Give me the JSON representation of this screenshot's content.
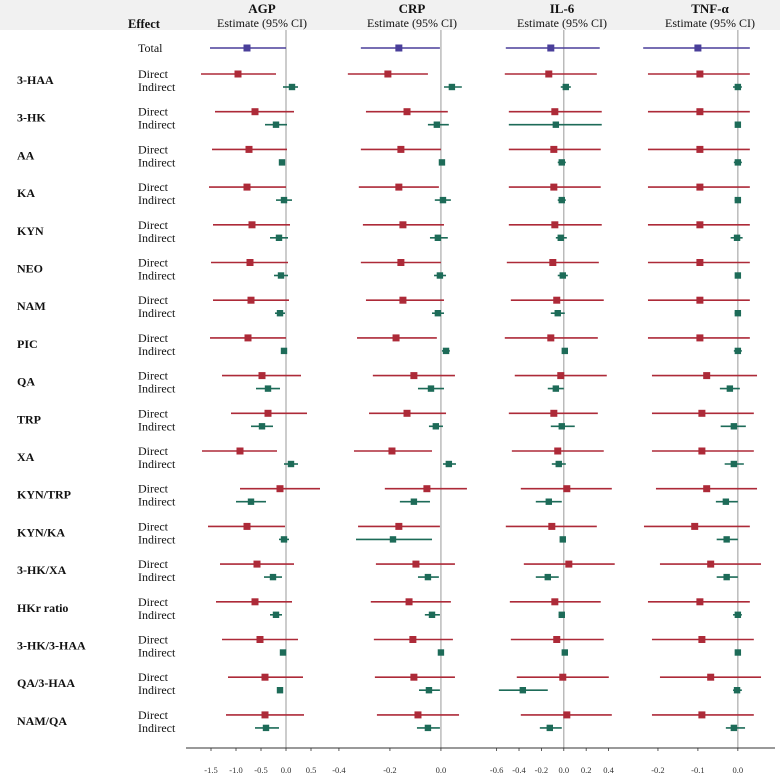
{
  "effect_header": "Effect",
  "chart_data": {
    "type": "forest",
    "colors": {
      "Total": "#4a3f9a",
      "Direct": "#ad2a38",
      "Indirect": "#1d6b58",
      "zero_line": "#aaaaaa"
    },
    "panels": [
      {
        "title": "AGP",
        "subtitle": "Estimate (95% CI)",
        "xlim": [
          -2.0,
          1.12
        ],
        "ticks": [
          -1.5,
          -1.0,
          -0.5,
          0.0,
          0.5
        ],
        "tick_labels": [
          "-1.5",
          "-1.0",
          "-0.5",
          "0.0",
          "0.5"
        ]
      },
      {
        "title": "CRP",
        "subtitle": "Estimate (95% CI)",
        "xlim": [
          -0.435,
          0.114
        ],
        "ticks": [
          -0.4,
          -0.2,
          0.0
        ],
        "tick_labels": [
          "-0.4",
          "-0.2",
          "0.0"
        ]
      },
      {
        "title": "IL-6",
        "subtitle": "Estimate (95% CI)",
        "xlim": [
          -0.82,
          0.52
        ],
        "ticks": [
          -0.6,
          -0.4,
          -0.2,
          0.0,
          0.2,
          0.4
        ],
        "tick_labels": [
          "-0.6",
          "-0.4",
          "-0.2",
          "0.0",
          "0.2",
          "0.4"
        ]
      },
      {
        "title": "TNF-α",
        "subtitle": "Estimate (95% CI)",
        "xlim": [
          -0.285,
          0.093
        ],
        "ticks": [
          -0.2,
          -0.1,
          0.0
        ],
        "tick_labels": [
          "-0.2",
          "-0.1",
          "0.0"
        ]
      }
    ],
    "total": {
      "effect": "Total",
      "values": [
        [
          -0.78,
          -1.52,
          0.0
        ],
        [
          -0.165,
          -0.314,
          -0.004
        ],
        [
          -0.116,
          -0.518,
          0.321
        ],
        [
          -0.1,
          -0.237,
          0.03
        ]
      ]
    },
    "rows": [
      {
        "exposure": "3-HAA",
        "direct": [
          [
            -0.96,
            -1.7,
            -0.2
          ],
          [
            -0.208,
            -0.365,
            -0.051
          ],
          [
            -0.134,
            -0.527,
            0.295
          ],
          [
            -0.095,
            -0.225,
            0.03
          ]
        ],
        "indirect": [
          [
            0.12,
            -0.06,
            0.24
          ],
          [
            0.043,
            0.012,
            0.082
          ],
          [
            0.018,
            -0.027,
            0.063
          ],
          [
            0,
            -0.012,
            0.01
          ]
        ]
      },
      {
        "exposure": "3-HK",
        "direct": [
          [
            -0.62,
            -1.42,
            0.16
          ],
          [
            -0.133,
            -0.294,
            0.027
          ],
          [
            -0.08,
            -0.491,
            0.339
          ],
          [
            -0.095,
            -0.225,
            0.03
          ]
        ],
        "indirect": [
          [
            -0.2,
            -0.42,
            0.02
          ],
          [
            -0.016,
            -0.051,
            0.031
          ],
          [
            -0.071,
            -0.491,
            0.339
          ],
          [
            0,
            -0.005,
            0.005
          ]
        ]
      },
      {
        "exposure": "AA",
        "direct": [
          [
            -0.74,
            -1.48,
            0.02
          ],
          [
            -0.157,
            -0.314,
            0.0
          ],
          [
            -0.089,
            -0.491,
            0.33
          ],
          [
            -0.095,
            -0.225,
            0.03
          ]
        ],
        "indirect": [
          [
            -0.08,
            -0.12,
            -0.02
          ],
          [
            0.004,
            -0.004,
            0.012
          ],
          [
            -0.018,
            -0.054,
            0.018
          ],
          [
            0,
            -0.01,
            0.01
          ]
        ]
      },
      {
        "exposure": "KA",
        "direct": [
          [
            -0.78,
            -1.54,
            0.0
          ],
          [
            -0.165,
            -0.322,
            -0.008
          ],
          [
            -0.089,
            -0.491,
            0.33
          ],
          [
            -0.095,
            -0.225,
            0.03
          ]
        ],
        "indirect": [
          [
            -0.04,
            -0.2,
            0.12
          ],
          [
            0.008,
            -0.024,
            0.039
          ],
          [
            -0.018,
            -0.054,
            0.018
          ],
          [
            0,
            -0.008,
            0.008
          ]
        ]
      },
      {
        "exposure": "KYN",
        "direct": [
          [
            -0.68,
            -1.46,
            0.08
          ],
          [
            -0.149,
            -0.306,
            0.012
          ],
          [
            -0.08,
            -0.491,
            0.339
          ],
          [
            -0.095,
            -0.225,
            0.03
          ]
        ],
        "indirect": [
          [
            -0.14,
            -0.32,
            0.04
          ],
          [
            -0.012,
            -0.043,
            0.027
          ],
          [
            -0.027,
            -0.071,
            0.027
          ],
          [
            -0.002,
            -0.018,
            0.012
          ]
        ]
      },
      {
        "exposure": "NEO",
        "direct": [
          [
            -0.72,
            -1.5,
            0.04
          ],
          [
            -0.157,
            -0.314,
            0.0
          ],
          [
            -0.098,
            -0.509,
            0.313
          ],
          [
            -0.095,
            -0.225,
            0.03
          ]
        ],
        "indirect": [
          [
            -0.1,
            -0.24,
            0.04
          ],
          [
            -0.004,
            -0.027,
            0.02
          ],
          [
            -0.009,
            -0.054,
            0.036
          ],
          [
            0,
            -0.005,
            0.005
          ]
        ]
      },
      {
        "exposure": "NAM",
        "direct": [
          [
            -0.7,
            -1.46,
            0.06
          ],
          [
            -0.149,
            -0.294,
            0.012
          ],
          [
            -0.063,
            -0.473,
            0.357
          ],
          [
            -0.095,
            -0.225,
            0.03
          ]
        ],
        "indirect": [
          [
            -0.12,
            -0.22,
            -0.02
          ],
          [
            -0.012,
            -0.035,
            0.012
          ],
          [
            -0.054,
            -0.116,
            0.009
          ],
          [
            0,
            -0.008,
            0.008
          ]
        ]
      },
      {
        "exposure": "PIC",
        "direct": [
          [
            -0.76,
            -1.52,
            0.0
          ],
          [
            -0.176,
            -0.329,
            -0.016
          ],
          [
            -0.116,
            -0.527,
            0.304
          ],
          [
            -0.095,
            -0.225,
            0.03
          ]
        ],
        "indirect": [
          [
            -0.04,
            -0.08,
            0.0
          ],
          [
            0.02,
            0.004,
            0.035
          ],
          [
            0.009,
            -0.009,
            0.027
          ],
          [
            0,
            -0.01,
            0.01
          ]
        ]
      },
      {
        "exposure": "QA",
        "direct": [
          [
            -0.48,
            -1.28,
            0.3
          ],
          [
            -0.106,
            -0.267,
            0.055
          ],
          [
            -0.027,
            -0.438,
            0.384
          ],
          [
            -0.078,
            -0.215,
            0.048
          ]
        ],
        "indirect": [
          [
            -0.36,
            -0.6,
            -0.12
          ],
          [
            -0.039,
            -0.09,
            0.012
          ],
          [
            -0.071,
            -0.143,
            0.0
          ],
          [
            -0.02,
            -0.045,
            0.005
          ]
        ]
      },
      {
        "exposure": "TRP",
        "direct": [
          [
            -0.36,
            -1.1,
            0.42
          ],
          [
            -0.133,
            -0.282,
            0.02
          ],
          [
            -0.089,
            -0.491,
            0.304
          ],
          [
            -0.09,
            -0.215,
            0.04
          ]
        ],
        "indirect": [
          [
            -0.48,
            -0.7,
            -0.26
          ],
          [
            -0.02,
            -0.047,
            0.008
          ],
          [
            -0.018,
            -0.116,
            0.098
          ],
          [
            -0.01,
            -0.043,
            0.02
          ]
        ]
      },
      {
        "exposure": "XA",
        "direct": [
          [
            -0.92,
            -1.68,
            -0.18
          ],
          [
            -0.192,
            -0.341,
            -0.035
          ],
          [
            -0.054,
            -0.464,
            0.357
          ],
          [
            -0.09,
            -0.215,
            0.04
          ]
        ],
        "indirect": [
          [
            0.1,
            -0.04,
            0.24
          ],
          [
            0.031,
            0.008,
            0.059
          ],
          [
            -0.045,
            -0.107,
            0.018
          ],
          [
            -0.01,
            -0.033,
            0.015
          ]
        ]
      },
      {
        "exposure": "KYN/TRP",
        "direct": [
          [
            -0.12,
            -0.92,
            0.68
          ],
          [
            -0.055,
            -0.22,
            0.102
          ],
          [
            0.027,
            -0.384,
            0.429
          ],
          [
            -0.078,
            -0.205,
            0.048
          ]
        ],
        "indirect": [
          [
            -0.7,
            -1.0,
            -0.4
          ],
          [
            -0.106,
            -0.161,
            -0.043
          ],
          [
            -0.134,
            -0.25,
            -0.018
          ],
          [
            -0.03,
            -0.055,
            0.0
          ]
        ]
      },
      {
        "exposure": "KYN/KA",
        "direct": [
          [
            -0.78,
            -1.56,
            -0.02
          ],
          [
            -0.165,
            -0.325,
            -0.004
          ],
          [
            -0.107,
            -0.518,
            0.295
          ],
          [
            -0.108,
            -0.235,
            0.03
          ]
        ],
        "indirect": [
          [
            -0.04,
            -0.14,
            0.06
          ],
          [
            -0.188,
            -0.333,
            -0.035
          ],
          [
            -0.009,
            -0.027,
            0.009
          ],
          [
            -0.028,
            -0.053,
            0.0
          ]
        ]
      },
      {
        "exposure": "3-HK/XA",
        "direct": [
          [
            -0.58,
            -1.32,
            0.16
          ],
          [
            -0.098,
            -0.255,
            0.055
          ],
          [
            0.045,
            -0.357,
            0.455
          ],
          [
            -0.068,
            -0.195,
            0.058
          ]
        ],
        "indirect": [
          [
            -0.26,
            -0.44,
            -0.08
          ],
          [
            -0.051,
            -0.09,
            -0.008
          ],
          [
            -0.143,
            -0.25,
            -0.045
          ],
          [
            -0.028,
            -0.053,
            0.0
          ]
        ]
      },
      {
        "exposure": "HKr ratio",
        "direct": [
          [
            -0.62,
            -1.4,
            0.12
          ],
          [
            -0.125,
            -0.275,
            0.039
          ],
          [
            -0.08,
            -0.482,
            0.33
          ],
          [
            -0.095,
            -0.225,
            0.03
          ]
        ],
        "indirect": [
          [
            -0.2,
            -0.32,
            -0.08
          ],
          [
            -0.035,
            -0.063,
            -0.004
          ],
          [
            -0.018,
            -0.045,
            0.009
          ],
          [
            0,
            -0.012,
            0.01
          ]
        ]
      },
      {
        "exposure": "3-HK/3-HAA",
        "direct": [
          [
            -0.52,
            -1.28,
            0.24
          ],
          [
            -0.11,
            -0.263,
            0.047
          ],
          [
            -0.063,
            -0.473,
            0.357
          ],
          [
            -0.09,
            -0.215,
            0.04
          ]
        ],
        "indirect": [
          [
            -0.06,
            -0.1,
            -0.02
          ],
          [
            0.0,
            -0.004,
            0.008
          ],
          [
            0.009,
            -0.009,
            0.027
          ],
          [
            0,
            -0.002,
            0.002
          ]
        ]
      },
      {
        "exposure": "QA/3-HAA",
        "direct": [
          [
            -0.42,
            -1.16,
            0.34
          ],
          [
            -0.106,
            -0.259,
            0.055
          ],
          [
            -0.009,
            -0.42,
            0.402
          ],
          [
            -0.068,
            -0.195,
            0.058
          ]
        ],
        "indirect": [
          [
            -0.12,
            -0.16,
            -0.08
          ],
          [
            -0.047,
            -0.086,
            -0.004
          ],
          [
            -0.366,
            -0.58,
            -0.143
          ],
          [
            -0.002,
            -0.012,
            0.01
          ]
        ]
      },
      {
        "exposure": "NAM/QA",
        "direct": [
          [
            -0.42,
            -1.2,
            0.36
          ],
          [
            -0.09,
            -0.251,
            0.071
          ],
          [
            0.027,
            -0.384,
            0.429
          ],
          [
            -0.09,
            -0.215,
            0.04
          ]
        ],
        "indirect": [
          [
            -0.4,
            -0.62,
            -0.14
          ],
          [
            -0.051,
            -0.094,
            -0.004
          ],
          [
            -0.125,
            -0.214,
            -0.018
          ],
          [
            -0.01,
            -0.03,
            0.018
          ]
        ]
      }
    ],
    "effect_labels": {
      "direct": "Direct",
      "indirect": "Indirect"
    }
  }
}
